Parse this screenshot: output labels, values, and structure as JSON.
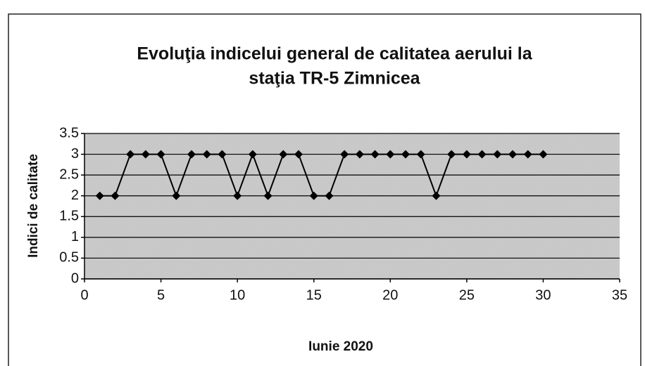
{
  "chart_data": {
    "type": "line",
    "title": [
      "Evoluţia indicelui general de calitatea aerului la",
      "staţia TR-5 Zimnicea"
    ],
    "x_label": "Iunie 2020",
    "y_label": "Indici de calitate",
    "x": [
      1,
      2,
      3,
      4,
      5,
      6,
      7,
      8,
      9,
      10,
      11,
      12,
      13,
      14,
      15,
      16,
      17,
      18,
      19,
      20,
      21,
      22,
      23,
      24,
      25,
      26,
      27,
      28,
      29,
      30
    ],
    "series": [
      {
        "name": "Indici de calitate",
        "color": "#000000",
        "values": [
          2,
          2,
          3,
          3,
          3,
          2,
          3,
          3,
          3,
          2,
          3,
          2,
          3,
          3,
          2,
          2,
          3,
          3,
          3,
          3,
          3,
          3,
          2,
          3,
          3,
          3,
          3,
          3,
          3,
          3
        ]
      }
    ],
    "xlim": [
      0,
      35
    ],
    "xticks": [
      0,
      5,
      10,
      15,
      20,
      25,
      30,
      35
    ],
    "ylim": [
      0,
      3.5
    ],
    "yticks": [
      0,
      0.5,
      1,
      1.5,
      2,
      2.5,
      3,
      3.5
    ],
    "grid": true
  }
}
